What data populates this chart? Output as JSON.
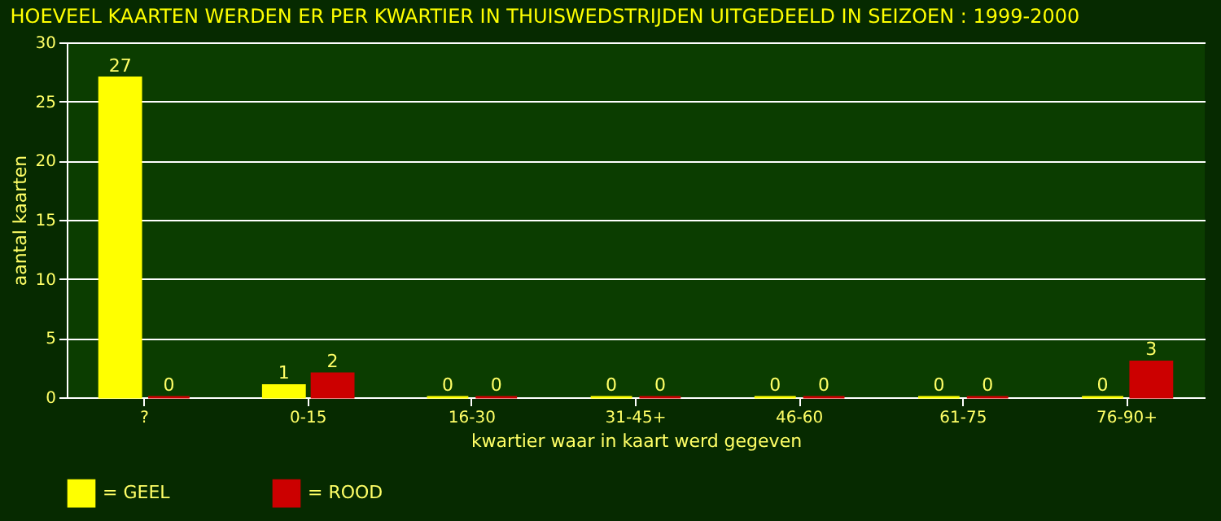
{
  "chart_data": {
    "type": "bar",
    "title": "HOEVEEL KAARTEN WERDEN ER PER KWARTIER IN THUISWEDSTRIJDEN UITGEDEELD IN SEIZOEN : 1999-2000",
    "xlabel": "kwartier waar in kaart werd gegeven",
    "ylabel": "aantal kaarten",
    "categories": [
      "?",
      "0-15",
      "16-30",
      "31-45+",
      "46-60",
      "61-75",
      "76-90+"
    ],
    "series": [
      {
        "name": "= GEEL",
        "color": "#ffff00",
        "values": [
          27,
          1,
          0,
          0,
          0,
          0,
          0
        ]
      },
      {
        "name": "= ROOD",
        "color": "#cc0000",
        "values": [
          0,
          2,
          0,
          0,
          0,
          0,
          3
        ]
      }
    ],
    "ylim": [
      0,
      30
    ],
    "yticks": [
      0,
      5,
      10,
      15,
      20,
      25,
      30
    ],
    "grid": "y",
    "legend": "bottom",
    "data_labels": true
  }
}
